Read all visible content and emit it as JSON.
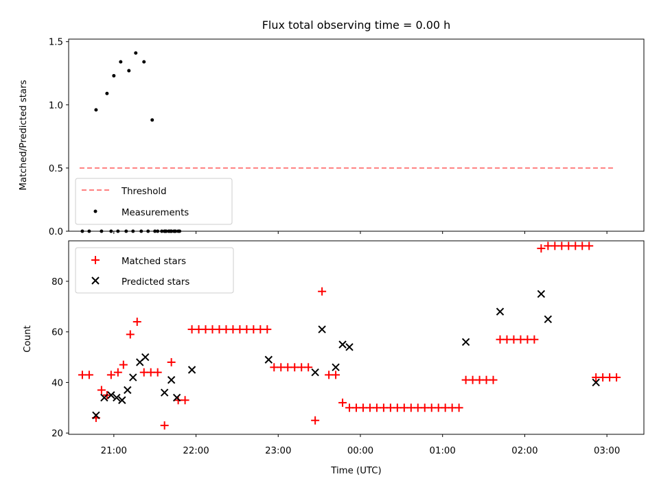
{
  "chart_data": [
    {
      "type": "scatter",
      "title": "Flux total observing time = 0.00 h",
      "xlabel": "",
      "ylabel": "Matched/Predicted stars",
      "ylim": [
        0,
        1.52
      ],
      "yticks": [
        "0.0",
        "0.5",
        "1.0",
        "1.5"
      ],
      "ytick_values": [
        0,
        0.5,
        1.0,
        1.5
      ],
      "xlim_hours": [
        20.45,
        27.45
      ],
      "legend_position": "lower-left",
      "series": [
        {
          "name": "Threshold",
          "kind": "dashed-line",
          "color": "#ff7f7f",
          "x": [
            "20:35",
            "03:05"
          ],
          "y": [
            0.5,
            0.5
          ]
        },
        {
          "name": "Measurements",
          "kind": "points",
          "color": "#000000",
          "points": [
            [
              "20:37",
              0.0
            ],
            [
              "20:42",
              0.0
            ],
            [
              "20:47",
              0.96
            ],
            [
              "20:51",
              0.0
            ],
            [
              "20:55",
              1.09
            ],
            [
              "20:58",
              0.0
            ],
            [
              "21:00",
              1.23
            ],
            [
              "21:03",
              0.0
            ],
            [
              "21:05",
              1.34
            ],
            [
              "21:09",
              0.0
            ],
            [
              "21:11",
              1.27
            ],
            [
              "21:14",
              0.0
            ],
            [
              "21:16",
              1.41
            ],
            [
              "21:20",
              0.0
            ],
            [
              "21:22",
              1.34
            ],
            [
              "21:25",
              0.0
            ],
            [
              "21:28",
              0.88
            ],
            [
              "21:32",
              0.0
            ],
            [
              "21:35",
              0.0
            ],
            [
              "21:38",
              0.0
            ],
            [
              "21:42",
              0.0
            ],
            [
              "21:45",
              0.0
            ],
            [
              "21:48",
              0.0
            ],
            [
              "21:38",
              0.0
            ],
            [
              "21:37",
              0.0
            ],
            [
              "21:40",
              0.0
            ],
            [
              "21:44",
              0.0
            ],
            [
              "21:30",
              0.0
            ],
            [
              "21:37",
              0.0
            ],
            [
              "21:41",
              0.0
            ],
            [
              "21:44",
              0.0
            ],
            [
              "21:47",
              0.0
            ],
            [
              "21:38",
              0.0
            ],
            [
              "21:42",
              0.0
            ]
          ]
        }
      ]
    },
    {
      "type": "scatter",
      "title": "",
      "xlabel": "Time (UTC)",
      "ylabel": "Count",
      "ylim": [
        19.5,
        96
      ],
      "yticks": [
        "20",
        "40",
        "60",
        "80"
      ],
      "ytick_values": [
        20,
        40,
        60,
        80
      ],
      "xticks": [
        "21:00",
        "22:00",
        "23:00",
        "00:00",
        "01:00",
        "02:00",
        "03:00"
      ],
      "xtick_hours": [
        21,
        22,
        23,
        24,
        25,
        26,
        27
      ],
      "xlim_hours": [
        20.45,
        27.45
      ],
      "legend_position": "upper-left",
      "series": [
        {
          "name": "Matched stars",
          "marker": "+",
          "color": "#ff0000",
          "points": [
            [
              "20:37",
              43
            ],
            [
              "20:42",
              43
            ],
            [
              "20:47",
              26
            ],
            [
              "20:51",
              37
            ],
            [
              "20:55",
              35
            ],
            [
              "20:58",
              43
            ],
            [
              "21:03",
              44
            ],
            [
              "21:07",
              47
            ],
            [
              "21:12",
              59
            ],
            [
              "21:17",
              64
            ],
            [
              "21:22",
              44
            ],
            [
              "21:27",
              44
            ],
            [
              "21:32",
              44
            ],
            [
              "21:37",
              23
            ],
            [
              "21:42",
              48
            ],
            [
              "21:47",
              33
            ],
            [
              "21:52",
              33
            ],
            [
              "21:57",
              61
            ],
            [
              "22:02",
              61
            ],
            [
              "22:07",
              61
            ],
            [
              "22:12",
              61
            ],
            [
              "22:17",
              61
            ],
            [
              "22:22",
              61
            ],
            [
              "22:27",
              61
            ],
            [
              "22:32",
              61
            ],
            [
              "22:37",
              61
            ],
            [
              "22:42",
              61
            ],
            [
              "22:47",
              61
            ],
            [
              "22:52",
              61
            ],
            [
              "22:57",
              46
            ],
            [
              "23:02",
              46
            ],
            [
              "23:07",
              46
            ],
            [
              "23:12",
              46
            ],
            [
              "23:17",
              46
            ],
            [
              "23:22",
              46
            ],
            [
              "23:27",
              25
            ],
            [
              "23:32",
              76
            ],
            [
              "23:37",
              43
            ],
            [
              "23:42",
              43
            ],
            [
              "23:47",
              32
            ],
            [
              "23:52",
              30
            ],
            [
              "23:57",
              30
            ],
            [
              "00:02",
              30
            ],
            [
              "00:07",
              30
            ],
            [
              "00:12",
              30
            ],
            [
              "00:17",
              30
            ],
            [
              "00:22",
              30
            ],
            [
              "00:27",
              30
            ],
            [
              "00:32",
              30
            ],
            [
              "00:37",
              30
            ],
            [
              "00:42",
              30
            ],
            [
              "00:47",
              30
            ],
            [
              "00:52",
              30
            ],
            [
              "00:57",
              30
            ],
            [
              "01:02",
              30
            ],
            [
              "01:07",
              30
            ],
            [
              "01:12",
              30
            ],
            [
              "01:17",
              41
            ],
            [
              "01:22",
              41
            ],
            [
              "01:27",
              41
            ],
            [
              "01:32",
              41
            ],
            [
              "01:37",
              41
            ],
            [
              "01:42",
              57
            ],
            [
              "01:47",
              57
            ],
            [
              "01:52",
              57
            ],
            [
              "01:57",
              57
            ],
            [
              "02:02",
              57
            ],
            [
              "02:07",
              57
            ],
            [
              "02:12",
              93
            ],
            [
              "02:17",
              94
            ],
            [
              "02:22",
              94
            ],
            [
              "02:27",
              94
            ],
            [
              "02:32",
              94
            ],
            [
              "02:37",
              94
            ],
            [
              "02:42",
              94
            ],
            [
              "02:47",
              94
            ],
            [
              "02:52",
              42
            ],
            [
              "02:57",
              42
            ],
            [
              "03:02",
              42
            ],
            [
              "03:07",
              42
            ]
          ]
        },
        {
          "name": "Predicted stars",
          "marker": "x",
          "color": "#000000",
          "points": [
            [
              "20:47",
              27
            ],
            [
              "20:53",
              34
            ],
            [
              "20:58",
              35
            ],
            [
              "21:02",
              34
            ],
            [
              "21:06",
              33
            ],
            [
              "21:10",
              37
            ],
            [
              "21:14",
              42
            ],
            [
              "21:19",
              48
            ],
            [
              "21:23",
              50
            ],
            [
              "21:37",
              36
            ],
            [
              "21:42",
              41
            ],
            [
              "21:46",
              34
            ],
            [
              "21:57",
              45
            ],
            [
              "22:53",
              49
            ],
            [
              "23:27",
              44
            ],
            [
              "23:32",
              61
            ],
            [
              "23:42",
              46
            ],
            [
              "23:47",
              55
            ],
            [
              "23:52",
              54
            ],
            [
              "01:17",
              56
            ],
            [
              "01:42",
              68
            ],
            [
              "02:12",
              75
            ],
            [
              "02:17",
              65
            ],
            [
              "02:52",
              40
            ]
          ]
        }
      ]
    }
  ]
}
